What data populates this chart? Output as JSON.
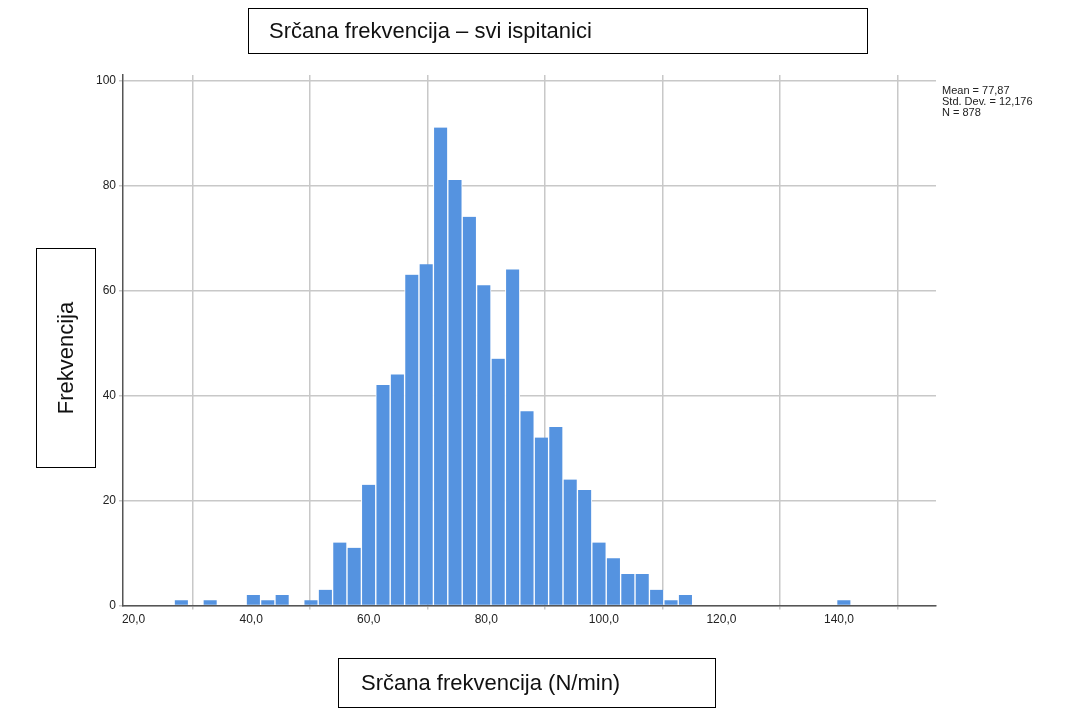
{
  "chart_data": {
    "type": "histogram",
    "title": "Srčana frekvencija – svi ispitanici",
    "xlabel": "Srčana frekvencija (N/min)",
    "ylabel": "Frekvencija",
    "bins": [
      26.9,
      29.35,
      31.8,
      34.25,
      36.7,
      39.15,
      41.6,
      44.05,
      46.5,
      48.95,
      51.4,
      53.85,
      56.3,
      58.75,
      61.2,
      63.65,
      66.1,
      68.55,
      71.0,
      73.45,
      75.9,
      78.35,
      80.8,
      83.25,
      85.7,
      88.15,
      90.6,
      93.05,
      95.5,
      97.95,
      100.4,
      102.85,
      105.3,
      107.75,
      110.2,
      112.65,
      115.1,
      117.55,
      120.0,
      122.45,
      124.9,
      127.35,
      129.8,
      132.25,
      134.7,
      137.15,
      139.6,
      142.05
    ],
    "values": [
      1,
      0,
      1,
      0,
      0,
      2,
      1,
      2,
      0,
      1,
      3,
      12,
      11,
      23,
      42,
      44,
      63,
      65,
      91,
      81,
      74,
      61,
      47,
      64,
      37,
      32,
      34,
      24,
      22,
      12,
      9,
      6,
      6,
      3,
      1,
      2,
      0,
      0,
      0,
      0,
      0,
      0,
      0,
      0,
      0,
      0,
      1
    ],
    "color": "#5593e0",
    "xlim": [
      18.2,
      156.5
    ],
    "ylim": [
      0,
      101
    ],
    "xticks": [
      {
        "value": 20,
        "label": "20,0"
      },
      {
        "value": 40,
        "label": "40,0"
      },
      {
        "value": 60,
        "label": "60,0"
      },
      {
        "value": 80,
        "label": "80,0"
      },
      {
        "value": 100,
        "label": "100,0"
      },
      {
        "value": 120,
        "label": "120,0"
      },
      {
        "value": 140,
        "label": "140,0"
      }
    ],
    "yticks": [
      0,
      20,
      40,
      60,
      80,
      100
    ],
    "grid": true,
    "annotations": [
      "Mean = 77,87",
      "Std. Dev. = 12,176",
      "N = 878"
    ]
  }
}
